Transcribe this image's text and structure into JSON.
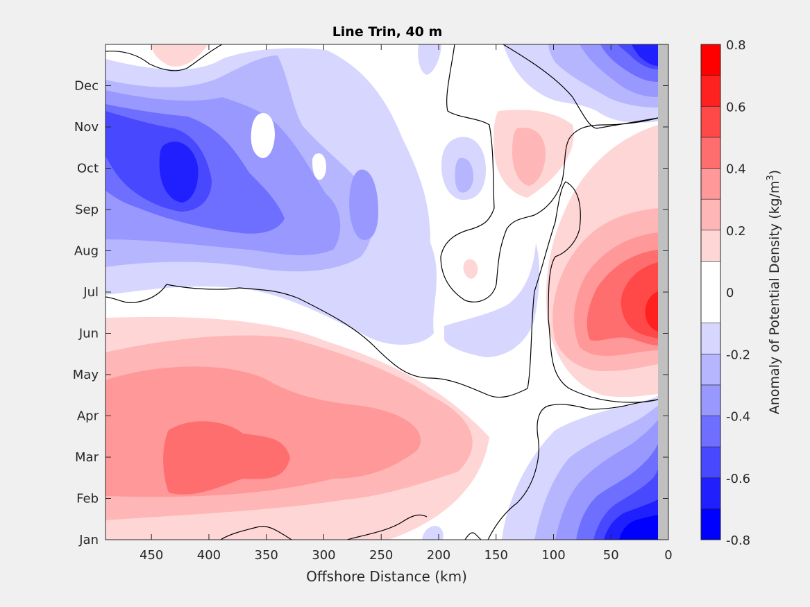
{
  "chart_data": {
    "type": "heatmap",
    "title": "Line Trin, 40 m",
    "xlabel": "Offshore Distance (km)",
    "ylabel": "",
    "xlim": [
      490,
      0
    ],
    "x_reversed": true,
    "x_ticks": [
      450,
      400,
      350,
      300,
      250,
      200,
      150,
      100,
      50,
      0
    ],
    "y_ticks": [
      "Jan",
      "Feb",
      "Mar",
      "Apr",
      "May",
      "Jun",
      "Jul",
      "Aug",
      "Sep",
      "Oct",
      "Nov",
      "Dec"
    ],
    "colorbar": {
      "label": "Anomaly of Potential Density (kg/m",
      "label_superscript": "3",
      "label_suffix": ")",
      "levels": [
        -0.8,
        -0.7,
        -0.6,
        -0.5,
        -0.4,
        -0.3,
        -0.2,
        -0.1,
        0.1,
        0.2,
        0.3,
        0.4,
        0.5,
        0.6,
        0.7,
        0.8
      ],
      "tick_values": [
        0.8,
        0.6,
        0.4,
        0.2,
        0,
        -0.2,
        -0.4,
        -0.6,
        -0.8
      ],
      "tick_labels": [
        "0.8",
        "0.6",
        "0.4",
        "0.2",
        "0",
        "-0.2",
        "-0.4",
        "-0.6",
        "-0.8"
      ],
      "colors_neg": [
        "#0000ff",
        "#2020ff",
        "#4848ff",
        "#6e6eff",
        "#9898ff",
        "#b6b6ff",
        "#d6d6ff"
      ],
      "colors_pos": [
        "#ffd6d6",
        "#ffb6b6",
        "#ff9898",
        "#ff6e6e",
        "#ff4848",
        "#ff2020",
        "#ff0000"
      ],
      "zero_color": "#ffffff"
    },
    "grid": false,
    "anomaly_features": [
      {
        "name": "nearshore winter negative",
        "x": 30,
        "y": 0.7,
        "value": -0.7
      },
      {
        "name": "offshore fall negative",
        "x": 420,
        "y": 9.6,
        "value": -0.6
      },
      {
        "name": "offshore winter-spring positive",
        "x": 370,
        "y": 2.7,
        "value": 0.45
      },
      {
        "name": "nearshore summer positive",
        "x": 15,
        "y": 5.6,
        "value": 0.6
      },
      {
        "name": "offshore summer negative",
        "x": 260,
        "y": 7.8,
        "value": -0.3
      }
    ]
  }
}
